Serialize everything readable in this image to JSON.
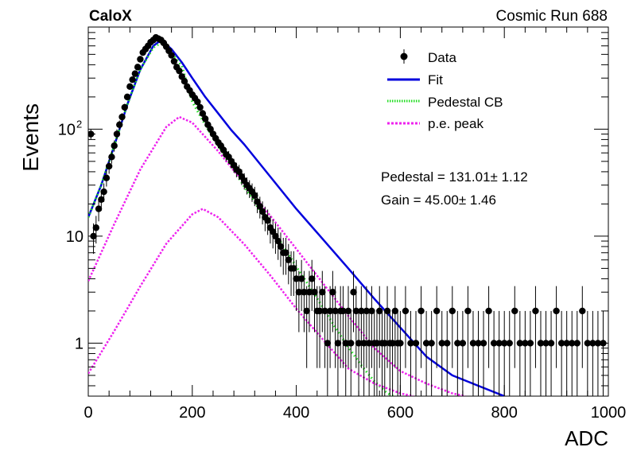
{
  "header": {
    "left_label": "CaloX",
    "right_label": "Cosmic Run 688"
  },
  "legend": {
    "entries": [
      {
        "label": "Data",
        "style": "marker"
      },
      {
        "label": "Fit",
        "style": "solid"
      },
      {
        "label": "Pedestal CB",
        "style": "dotted"
      },
      {
        "label": "p.e. peak",
        "style": "dashed"
      }
    ]
  },
  "fit_results": {
    "pedestal": "Pedestal = 131.01± 1.12",
    "gain": "Gain = 45.00± 1.46"
  },
  "colors": {
    "data": "#000000",
    "fit": "#0000dd",
    "pedestal": "#22dd22",
    "pe_peak": "#ee22ee"
  },
  "chart_data": {
    "type": "scatter",
    "xlabel": "ADC",
    "ylabel": "Events",
    "xlim": [
      0,
      1000
    ],
    "ylim": [
      0.32,
      900
    ],
    "log_y": true,
    "grid": false,
    "legend_position": "top-right",
    "x_ticks": [
      0,
      200,
      400,
      600,
      800,
      1000
    ],
    "y_ticks": [
      {
        "value": 1,
        "label": "1"
      },
      {
        "value": 10,
        "label": "10"
      },
      {
        "value": 100,
        "label": "10",
        "sup": "2"
      }
    ],
    "series": [
      {
        "name": "Data",
        "style": "points_with_errors",
        "x": [
          5,
          10,
          15,
          20,
          25,
          30,
          35,
          40,
          45,
          50,
          55,
          60,
          65,
          70,
          75,
          80,
          85,
          90,
          95,
          100,
          105,
          110,
          115,
          120,
          125,
          130,
          135,
          140,
          145,
          150,
          155,
          160,
          165,
          170,
          175,
          180,
          185,
          190,
          195,
          200,
          205,
          210,
          215,
          220,
          225,
          230,
          235,
          240,
          245,
          250,
          255,
          260,
          265,
          270,
          275,
          280,
          285,
          290,
          295,
          300,
          305,
          310,
          315,
          320,
          325,
          330,
          335,
          340,
          345,
          350,
          355,
          360,
          365,
          370,
          375,
          380,
          385,
          390,
          395,
          400,
          405,
          410,
          415,
          420,
          425,
          430,
          435,
          440,
          445,
          450,
          455,
          460,
          465,
          470,
          475,
          480,
          485,
          490,
          495,
          500,
          505,
          510,
          515,
          520,
          525,
          530,
          535,
          540,
          545,
          550,
          555,
          560,
          565,
          570,
          575,
          580,
          585,
          590,
          595,
          600,
          610,
          620,
          630,
          640,
          650,
          660,
          670,
          680,
          690,
          700,
          710,
          720,
          730,
          740,
          750,
          760,
          770,
          780,
          790,
          800,
          810,
          820,
          830,
          840,
          850,
          860,
          870,
          880,
          890,
          900,
          910,
          920,
          930,
          940,
          950,
          960,
          970,
          980,
          990
        ],
        "y": [
          90,
          10,
          12,
          18,
          22,
          26,
          35,
          45,
          55,
          70,
          90,
          110,
          130,
          160,
          200,
          250,
          290,
          330,
          380,
          450,
          520,
          560,
          600,
          650,
          680,
          720,
          700,
          680,
          640,
          590,
          540,
          490,
          430,
          380,
          350,
          310,
          280,
          250,
          230,
          210,
          195,
          180,
          160,
          140,
          125,
          110,
          100,
          90,
          82,
          75,
          70,
          64,
          58,
          55,
          50,
          46,
          42,
          40,
          36,
          33,
          30,
          28,
          26,
          24,
          21,
          19,
          17,
          15,
          14,
          12,
          11,
          10,
          9,
          8,
          7,
          7,
          6,
          5,
          5,
          4,
          3,
          4,
          3,
          2,
          3,
          4,
          3,
          2,
          2,
          3,
          2,
          1,
          2,
          3,
          2,
          1,
          2,
          2,
          1,
          2,
          1,
          3,
          2,
          1,
          2,
          1,
          2,
          1,
          2,
          1,
          1,
          2,
          1,
          1,
          2,
          1,
          1,
          2,
          1,
          1,
          2,
          1,
          1,
          2,
          1,
          1,
          2,
          1,
          1,
          2,
          1,
          1,
          2,
          1,
          1,
          1,
          2,
          1,
          1,
          1,
          1,
          2,
          1,
          1,
          1,
          2,
          1,
          1,
          1,
          2,
          1,
          1,
          1,
          1,
          2,
          1,
          1,
          1,
          1
        ]
      },
      {
        "name": "Fit",
        "style": "line",
        "x": [
          0,
          25,
          50,
          75,
          100,
          125,
          140,
          160,
          180,
          200,
          225,
          250,
          275,
          300,
          350,
          400,
          450,
          500,
          550,
          600,
          650,
          700,
          750,
          800
        ],
        "y": [
          15,
          30,
          70,
          170,
          360,
          600,
          680,
          560,
          420,
          300,
          200,
          140,
          98,
          72,
          36,
          18,
          9.5,
          5,
          2.6,
          1.4,
          0.75,
          0.5,
          0.4,
          0.32
        ]
      },
      {
        "name": "Pedestal CB",
        "style": "dotted",
        "x": [
          0,
          25,
          50,
          75,
          100,
          125,
          140,
          160,
          180,
          200,
          225,
          250,
          275,
          300,
          325,
          350,
          375,
          400,
          425,
          450,
          475,
          500,
          525,
          550,
          575,
          600,
          625
        ],
        "y": [
          15,
          30,
          70,
          170,
          360,
          580,
          640,
          520,
          390,
          180,
          110,
          70,
          45,
          29,
          19,
          12.5,
          8,
          5.2,
          3.4,
          2.2,
          1.4,
          0.92,
          0.62,
          0.44,
          0.34,
          0.3,
          0.28
        ]
      },
      {
        "name": "p.e. peak",
        "style": "dashed",
        "x": [
          0,
          50,
          100,
          150,
          175,
          200,
          250,
          300,
          350,
          400,
          450,
          500,
          550,
          600,
          650,
          700,
          725
        ],
        "y": [
          3.8,
          13,
          42,
          105,
          130,
          115,
          62,
          31,
          15.5,
          7.6,
          3.7,
          1.8,
          0.9,
          0.55,
          0.42,
          0.34,
          0.32
        ]
      },
      {
        "name": "p.e. peak",
        "style": "dashed",
        "x": [
          0,
          50,
          100,
          150,
          200,
          220,
          250,
          300,
          350,
          400,
          450,
          500,
          550,
          600,
          625
        ],
        "y": [
          0.52,
          1.3,
          3.4,
          8.5,
          16,
          18,
          15,
          8.4,
          4.3,
          2.1,
          1.1,
          0.58,
          0.42,
          0.34,
          0.32
        ]
      }
    ]
  }
}
